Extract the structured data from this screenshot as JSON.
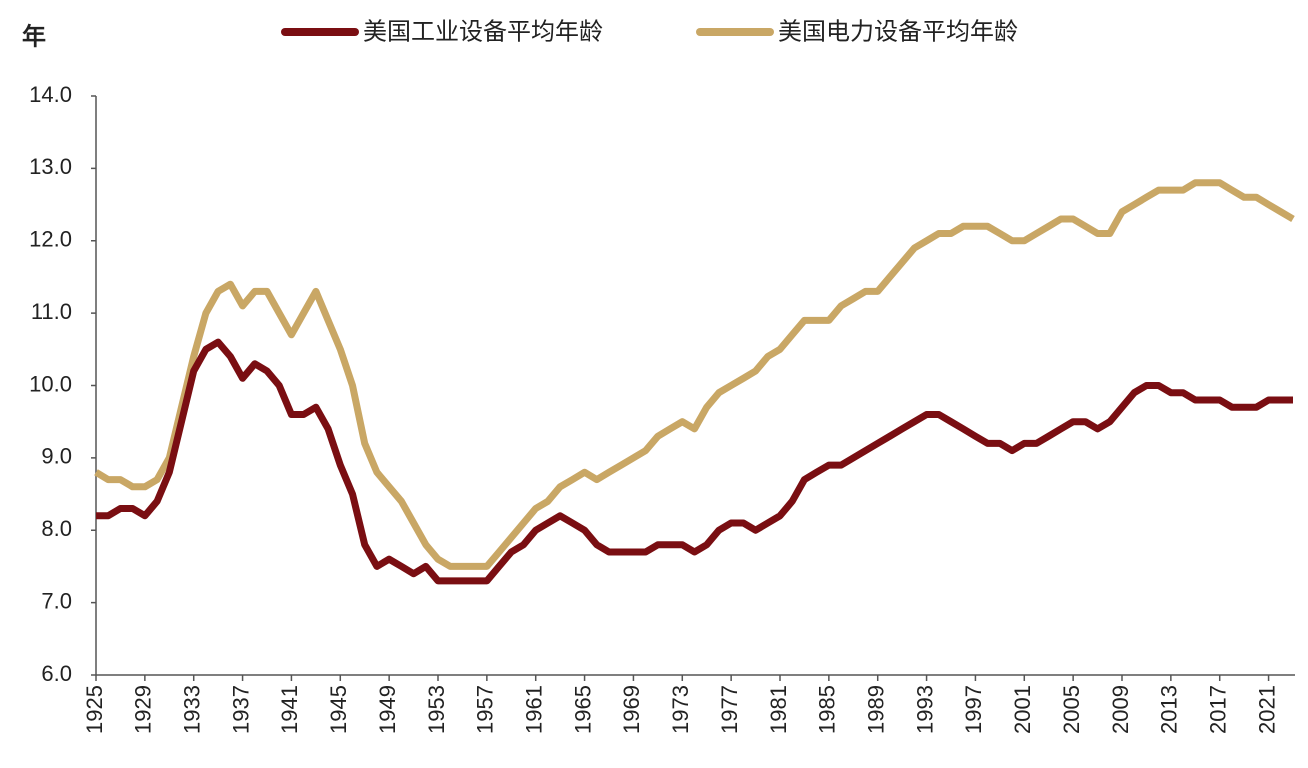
{
  "chart_data": {
    "type": "line",
    "y_label": "年",
    "x": [
      1925,
      1926,
      1927,
      1928,
      1929,
      1930,
      1931,
      1932,
      1933,
      1934,
      1935,
      1936,
      1937,
      1938,
      1939,
      1940,
      1941,
      1942,
      1943,
      1944,
      1945,
      1946,
      1947,
      1948,
      1949,
      1950,
      1951,
      1952,
      1953,
      1954,
      1955,
      1956,
      1957,
      1958,
      1959,
      1960,
      1961,
      1962,
      1963,
      1964,
      1965,
      1966,
      1967,
      1968,
      1969,
      1970,
      1971,
      1972,
      1973,
      1974,
      1975,
      1976,
      1977,
      1978,
      1979,
      1980,
      1981,
      1982,
      1983,
      1984,
      1985,
      1986,
      1987,
      1988,
      1989,
      1990,
      1991,
      1992,
      1993,
      1994,
      1995,
      1996,
      1997,
      1998,
      1999,
      2000,
      2001,
      2002,
      2003,
      2004,
      2005,
      2006,
      2007,
      2008,
      2009,
      2010,
      2011,
      2012,
      2013,
      2014,
      2015,
      2016,
      2017,
      2018,
      2019,
      2020,
      2021,
      2022,
      2023
    ],
    "series": [
      {
        "name": "美国工业设备平均年龄",
        "color": "#7a0e12",
        "values": [
          8.2,
          8.2,
          8.3,
          8.3,
          8.2,
          8.4,
          8.8,
          9.5,
          10.2,
          10.5,
          10.6,
          10.4,
          10.1,
          10.3,
          10.2,
          10.0,
          9.6,
          9.6,
          9.7,
          9.4,
          8.9,
          8.5,
          7.8,
          7.5,
          7.6,
          7.5,
          7.4,
          7.5,
          7.3,
          7.3,
          7.3,
          7.3,
          7.3,
          7.5,
          7.7,
          7.8,
          8.0,
          8.1,
          8.2,
          8.1,
          8.0,
          7.8,
          7.7,
          7.7,
          7.7,
          7.7,
          7.8,
          7.8,
          7.8,
          7.7,
          7.8,
          8.0,
          8.1,
          8.1,
          8.0,
          8.1,
          8.2,
          8.4,
          8.7,
          8.8,
          8.9,
          8.9,
          9.0,
          9.1,
          9.2,
          9.3,
          9.4,
          9.5,
          9.6,
          9.6,
          9.5,
          9.4,
          9.3,
          9.2,
          9.2,
          9.1,
          9.2,
          9.2,
          9.3,
          9.4,
          9.5,
          9.5,
          9.4,
          9.5,
          9.7,
          9.9,
          10.0,
          10.0,
          9.9,
          9.9,
          9.8,
          9.8,
          9.8,
          9.7,
          9.7,
          9.7,
          9.8,
          9.8,
          9.8
        ]
      },
      {
        "name": "美国电力设备平均年龄",
        "color": "#c9a765",
        "values": [
          8.8,
          8.7,
          8.7,
          8.6,
          8.6,
          8.7,
          9.0,
          9.7,
          10.4,
          11.0,
          11.3,
          11.4,
          11.1,
          11.3,
          11.3,
          11.0,
          10.7,
          11.0,
          11.3,
          10.9,
          10.5,
          10.0,
          9.2,
          8.8,
          8.6,
          8.4,
          8.1,
          7.8,
          7.6,
          7.5,
          7.5,
          7.5,
          7.5,
          7.7,
          7.9,
          8.1,
          8.3,
          8.4,
          8.6,
          8.7,
          8.8,
          8.7,
          8.8,
          8.9,
          9.0,
          9.1,
          9.3,
          9.4,
          9.5,
          9.4,
          9.7,
          9.9,
          10.0,
          10.1,
          10.2,
          10.4,
          10.5,
          10.7,
          10.9,
          10.9,
          10.9,
          11.1,
          11.2,
          11.3,
          11.3,
          11.5,
          11.7,
          11.9,
          12.0,
          12.1,
          12.1,
          12.2,
          12.2,
          12.2,
          12.1,
          12.0,
          12.0,
          12.1,
          12.2,
          12.3,
          12.3,
          12.2,
          12.1,
          12.1,
          12.4,
          12.5,
          12.6,
          12.7,
          12.7,
          12.7,
          12.8,
          12.8,
          12.8,
          12.7,
          12.6,
          12.6,
          12.5,
          12.4,
          12.3
        ]
      }
    ],
    "xlim": [
      1925,
      2023
    ],
    "xticks": [
      1925,
      1929,
      1933,
      1937,
      1941,
      1945,
      1949,
      1953,
      1957,
      1961,
      1965,
      1969,
      1973,
      1977,
      1981,
      1985,
      1989,
      1993,
      1997,
      2001,
      2005,
      2009,
      2013,
      2017,
      2021
    ],
    "ylim": [
      6,
      14
    ],
    "yticks": [
      {
        "value": 6,
        "label": "6.0"
      },
      {
        "value": 7,
        "label": "7.0"
      },
      {
        "value": 8,
        "label": "8.0"
      },
      {
        "value": 9,
        "label": "9.0"
      },
      {
        "value": 10,
        "label": "10.0"
      },
      {
        "value": 11,
        "label": "11.0"
      },
      {
        "value": 12,
        "label": "12.0"
      },
      {
        "value": 13,
        "label": "13.0"
      },
      {
        "value": 14,
        "label": "14.0"
      }
    ],
    "grid": false
  }
}
